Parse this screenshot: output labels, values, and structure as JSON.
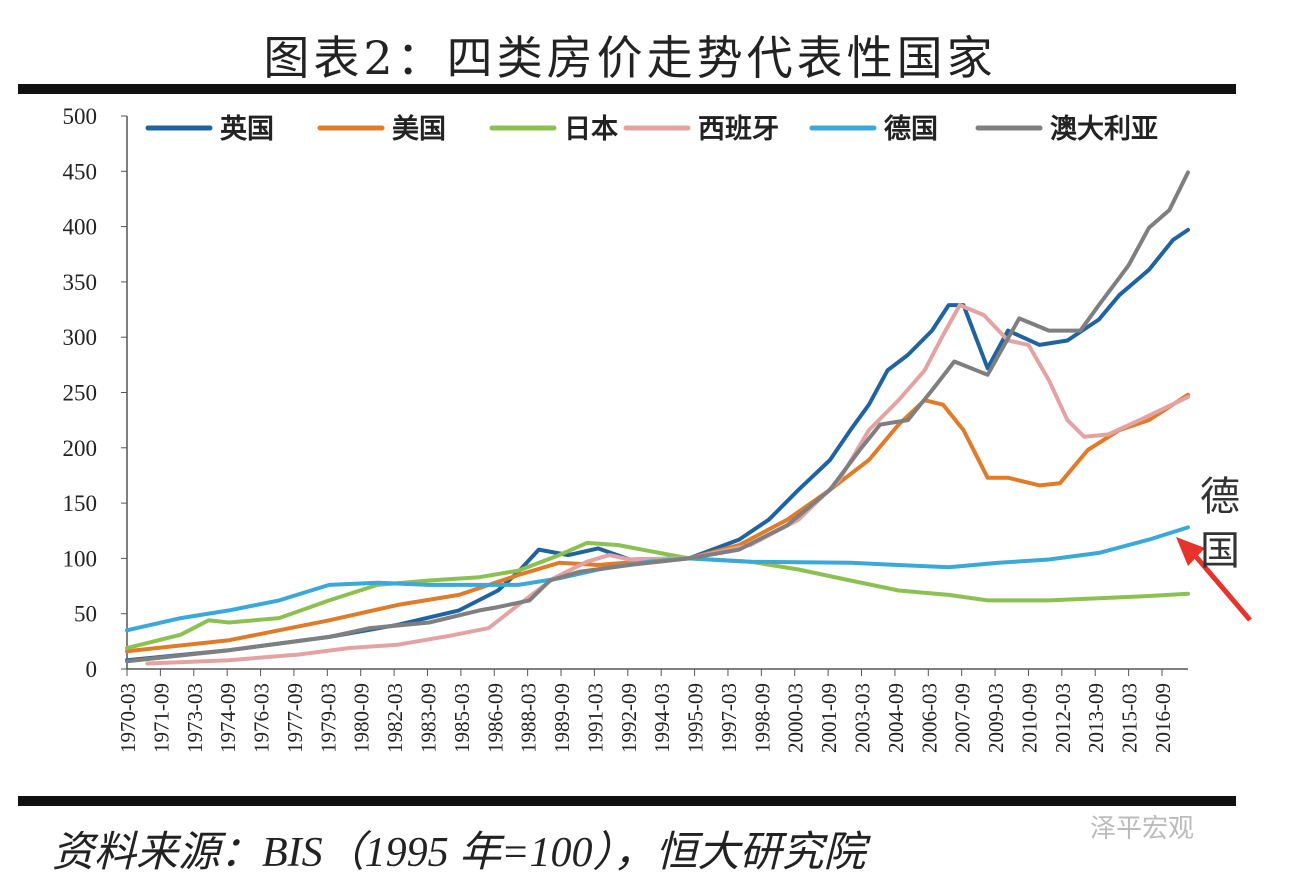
{
  "title": "图表2：四类房价走势代表性国家",
  "source": "资料来源：BIS（1995 年=100），恒大研究院",
  "watermark": "泽平宏观",
  "annotation": {
    "text": "德国",
    "arrow_color": "#e8322c"
  },
  "chart_data": {
    "type": "line",
    "title": "",
    "xlabel": "",
    "ylabel": "",
    "ylim": [
      0,
      500
    ],
    "yticks": [
      0,
      50,
      100,
      150,
      200,
      250,
      300,
      350,
      400,
      450,
      500
    ],
    "xlim": [
      "1970-03",
      "2017-11"
    ],
    "xticks": [
      "1970-03",
      "1971-09",
      "1973-03",
      "1974-09",
      "1976-03",
      "1977-09",
      "1979-03",
      "1980-09",
      "1982-03",
      "1983-09",
      "1985-03",
      "1986-09",
      "1988-03",
      "1989-09",
      "1991-03",
      "1992-09",
      "1994-03",
      "1995-09",
      "1997-03",
      "1998-09",
      "2000-03",
      "2001-09",
      "2003-03",
      "2004-09",
      "2006-03",
      "2007-09",
      "2009-03",
      "2010-09",
      "2012-03",
      "2013-09",
      "2015-03",
      "2016-09"
    ],
    "grid": false,
    "legend": "top",
    "series": [
      {
        "name": "英国",
        "color": "#1f64a0",
        "points": [
          [
            "1970-03",
            8
          ],
          [
            "1974-10",
            17
          ],
          [
            "1979-04",
            29
          ],
          [
            "1982-05",
            40
          ],
          [
            "1985-02",
            53
          ],
          [
            "1986-11",
            71
          ],
          [
            "1987-10",
            88
          ],
          [
            "1988-09",
            108
          ],
          [
            "1990-01",
            103
          ],
          [
            "1991-05",
            109
          ],
          [
            "1992-10",
            99
          ],
          [
            "1995-06",
            100
          ],
          [
            "1997-09",
            117
          ],
          [
            "1999-01",
            135
          ],
          [
            "2000-05",
            162
          ],
          [
            "2001-10",
            189
          ],
          [
            "2002-09",
            216
          ],
          [
            "2003-07",
            239
          ],
          [
            "2004-05",
            270
          ],
          [
            "2005-04",
            284
          ],
          [
            "2006-05",
            306
          ],
          [
            "2007-02",
            329
          ],
          [
            "2007-10",
            329
          ],
          [
            "2008-11",
            272
          ],
          [
            "2009-10",
            306
          ],
          [
            "2011-03",
            293
          ],
          [
            "2012-06",
            297
          ],
          [
            "2013-11",
            316
          ],
          [
            "2014-10",
            338
          ],
          [
            "2016-02",
            361
          ],
          [
            "2017-03",
            388
          ],
          [
            "2017-11",
            397
          ]
        ]
      },
      {
        "name": "美国",
        "color": "#e07b2a",
        "points": [
          [
            "1970-03",
            16
          ],
          [
            "1974-10",
            26
          ],
          [
            "1979-04",
            44
          ],
          [
            "1982-05",
            58
          ],
          [
            "1985-02",
            67
          ],
          [
            "1987-10",
            85
          ],
          [
            "1989-08",
            96
          ],
          [
            "1991-05",
            94
          ],
          [
            "1993-03",
            97
          ],
          [
            "1995-06",
            100
          ],
          [
            "1997-09",
            112
          ],
          [
            "1999-11",
            135
          ],
          [
            "2001-10",
            162
          ],
          [
            "2003-07",
            189
          ],
          [
            "2004-11",
            221
          ],
          [
            "2006-01",
            243
          ],
          [
            "2006-11",
            239
          ],
          [
            "2007-10",
            216
          ],
          [
            "2008-11",
            173
          ],
          [
            "2009-10",
            173
          ],
          [
            "2011-03",
            166
          ],
          [
            "2012-02",
            168
          ],
          [
            "2013-05",
            198
          ],
          [
            "2014-10",
            216
          ],
          [
            "2016-02",
            225
          ],
          [
            "2017-11",
            248
          ]
        ]
      },
      {
        "name": "日本",
        "color": "#8cc152",
        "points": [
          [
            "1970-03",
            19
          ],
          [
            "1972-08",
            31
          ],
          [
            "1973-11",
            44
          ],
          [
            "1974-10",
            42
          ],
          [
            "1977-01",
            46
          ],
          [
            "1979-04",
            62
          ],
          [
            "1981-06",
            76
          ],
          [
            "1983-10",
            80
          ],
          [
            "1986-01",
            83
          ],
          [
            "1987-10",
            89
          ],
          [
            "1989-08",
            103
          ],
          [
            "1990-11",
            114
          ],
          [
            "1992-04",
            112
          ],
          [
            "1994-02",
            105
          ],
          [
            "1995-06",
            100
          ],
          [
            "1998-03",
            97
          ],
          [
            "2000-05",
            90
          ],
          [
            "2002-09",
            80
          ],
          [
            "2004-11",
            71
          ],
          [
            "2007-02",
            67
          ],
          [
            "2008-11",
            62
          ],
          [
            "2011-08",
            62
          ],
          [
            "2013-11",
            64
          ],
          [
            "2016-02",
            66
          ],
          [
            "2017-11",
            68
          ]
        ]
      },
      {
        "name": "西班牙",
        "color": "#e3a3a3",
        "points": [
          [
            "1971-02",
            5
          ],
          [
            "1974-10",
            8
          ],
          [
            "1977-11",
            13
          ],
          [
            "1980-03",
            19
          ],
          [
            "1982-05",
            22
          ],
          [
            "1984-09",
            30
          ],
          [
            "1986-06",
            37
          ],
          [
            "1987-10",
            58
          ],
          [
            "1989-05",
            82
          ],
          [
            "1990-11",
            97
          ],
          [
            "1991-11",
            103
          ],
          [
            "1992-10",
            99
          ],
          [
            "1995-06",
            100
          ],
          [
            "1998-03",
            112
          ],
          [
            "2000-05",
            135
          ],
          [
            "2002-03",
            171
          ],
          [
            "2003-07",
            216
          ],
          [
            "2004-11",
            243
          ],
          [
            "2006-01",
            270
          ],
          [
            "2006-11",
            302
          ],
          [
            "2007-08",
            329
          ],
          [
            "2008-09",
            320
          ],
          [
            "2009-10",
            297
          ],
          [
            "2010-09",
            293
          ],
          [
            "2011-08",
            261
          ],
          [
            "2012-06",
            225
          ],
          [
            "2013-03",
            210
          ],
          [
            "2014-04",
            212
          ],
          [
            "2015-09",
            225
          ],
          [
            "2017-11",
            246
          ]
        ]
      },
      {
        "name": "德国",
        "color": "#3aa9d8",
        "points": [
          [
            "1970-03",
            35
          ],
          [
            "1972-08",
            46
          ],
          [
            "1974-10",
            53
          ],
          [
            "1977-01",
            62
          ],
          [
            "1979-04",
            76
          ],
          [
            "1981-06",
            78
          ],
          [
            "1983-10",
            76
          ],
          [
            "1986-01",
            76
          ],
          [
            "1987-10",
            76
          ],
          [
            "1989-08",
            82
          ],
          [
            "1991-05",
            90
          ],
          [
            "1993-08",
            97
          ],
          [
            "1995-06",
            100
          ],
          [
            "1998-03",
            97
          ],
          [
            "2002-09",
            96
          ],
          [
            "2004-11",
            94
          ],
          [
            "2007-02",
            92
          ],
          [
            "2009-05",
            96
          ],
          [
            "2011-08",
            99
          ],
          [
            "2013-11",
            105
          ],
          [
            "2016-02",
            117
          ],
          [
            "2017-11",
            128
          ]
        ]
      },
      {
        "name": "澳大利亚",
        "color": "#7f7f7f",
        "points": [
          [
            "1970-03",
            7
          ],
          [
            "1974-10",
            17
          ],
          [
            "1979-04",
            29
          ],
          [
            "1981-02",
            37
          ],
          [
            "1983-10",
            42
          ],
          [
            "1986-01",
            53
          ],
          [
            "1986-11",
            56
          ],
          [
            "1988-04",
            62
          ],
          [
            "1989-03",
            80
          ],
          [
            "1990-07",
            88
          ],
          [
            "1992-10",
            94
          ],
          [
            "1995-06",
            100
          ],
          [
            "1997-09",
            108
          ],
          [
            "1999-11",
            130
          ],
          [
            "2001-10",
            162
          ],
          [
            "2003-02",
            198
          ],
          [
            "2004-01",
            221
          ],
          [
            "2005-04",
            225
          ],
          [
            "2006-05",
            252
          ],
          [
            "2007-05",
            278
          ],
          [
            "2008-11",
            266
          ],
          [
            "2010-04",
            317
          ],
          [
            "2011-08",
            306
          ],
          [
            "2013-01",
            306
          ],
          [
            "2013-11",
            329
          ],
          [
            "2015-03",
            365
          ],
          [
            "2016-02",
            399
          ],
          [
            "2017-01",
            415
          ],
          [
            "2017-11",
            449
          ]
        ]
      }
    ]
  }
}
